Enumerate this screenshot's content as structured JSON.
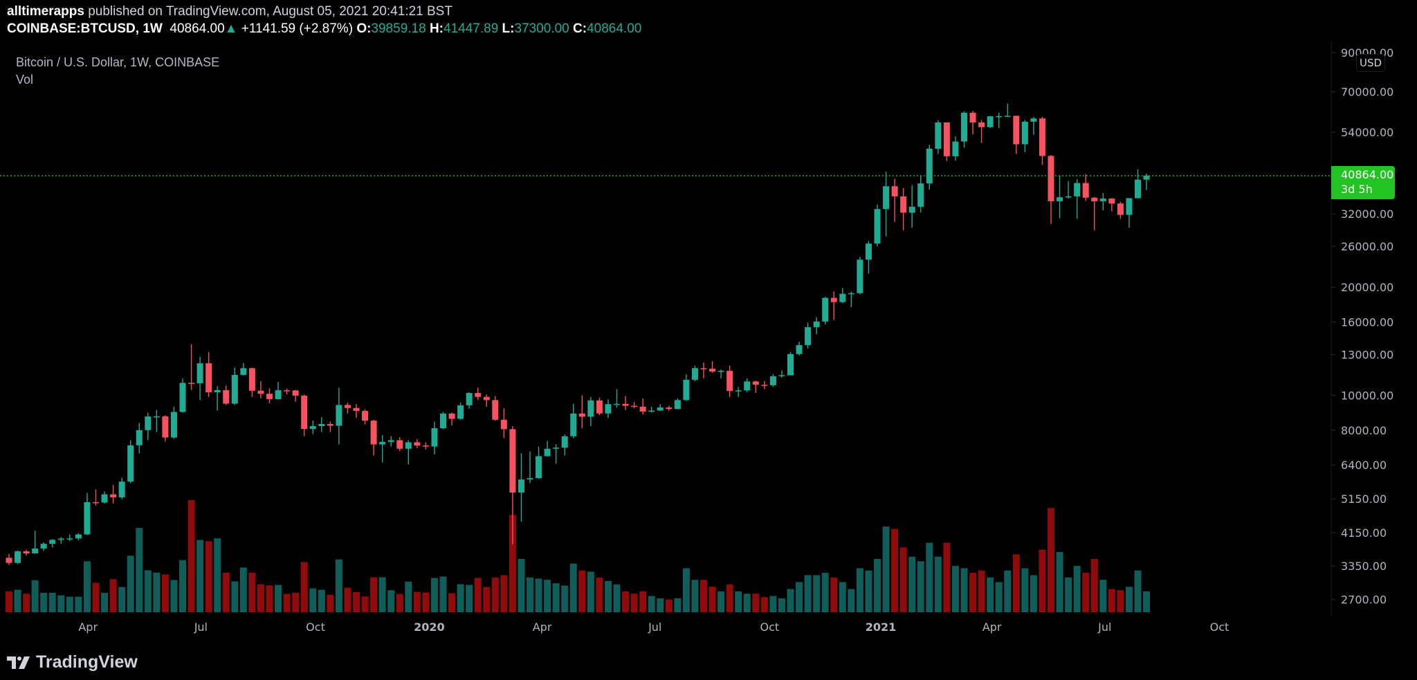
{
  "header": {
    "author": "alltimerapps",
    "published": "published on TradingView.com, August 05, 2021 20:41:21 BST",
    "symbol": "COINBASE:BTCUSD, 1W",
    "last": "40864.00",
    "change": "+1141.59 (+2.87%)",
    "o_label": "O:",
    "o": "39859.18",
    "h_label": "H:",
    "h": "41447.89",
    "l_label": "L:",
    "l": "37300.00",
    "c_label": "C:",
    "c": "40864.00"
  },
  "legend": {
    "title": "Bitcoin / U.S. Dollar, 1W, COINBASE",
    "vol": "Vol"
  },
  "price_axis": {
    "currency": "USD",
    "last_price": "40864.00",
    "countdown": "3d 5h"
  },
  "brand": "TradingView",
  "colors": {
    "up": "#22ab94",
    "down": "#f7525f",
    "vol_up": "#0f5e5a",
    "vol_down": "#900c0c",
    "last_price": "#22c322"
  },
  "chart_data": {
    "type": "candlestick",
    "title": "Bitcoin / U.S. Dollar, 1W, COINBASE",
    "scale": "log",
    "ylim": [
      2700,
      90000
    ],
    "y_ticks": [
      90000,
      70000,
      54000,
      32000,
      26000,
      20000,
      16000,
      13000,
      10000,
      8000,
      6400,
      5150,
      4150,
      3350,
      2700
    ],
    "y_tick_labels": [
      "90000.00",
      "70000.00",
      "54000.00",
      "32000.00",
      "26000.00",
      "20000.00",
      "16000.00",
      "13000.00",
      "10000.00",
      "8000.00",
      "6400.00",
      "5150.00",
      "4150.00",
      "3350.00",
      "2700.00"
    ],
    "x_ticks": [
      "Apr",
      "Jul",
      "Oct",
      "2020",
      "Apr",
      "Jul",
      "Oct",
      "2021",
      "Apr",
      "Jul",
      "Oct"
    ],
    "last_price": 40864.0,
    "candle_fields": [
      "open",
      "high",
      "low",
      "close",
      "volume"
    ],
    "candles": [
      [
        3530,
        3620,
        3370,
        3415,
        90
      ],
      [
        3415,
        3700,
        3390,
        3680,
        97
      ],
      [
        3680,
        3720,
        3580,
        3630,
        80
      ],
      [
        3630,
        4200,
        3620,
        3745,
        138
      ],
      [
        3745,
        3900,
        3690,
        3860,
        84
      ],
      [
        3860,
        3980,
        3770,
        3960,
        84
      ],
      [
        3960,
        4030,
        3860,
        3990,
        73
      ],
      [
        3990,
        4100,
        3930,
        3995,
        67
      ],
      [
        3995,
        4130,
        3950,
        4100,
        67
      ],
      [
        4100,
        5350,
        4080,
        5040,
        220
      ],
      [
        5040,
        5470,
        4930,
        5030,
        127
      ],
      [
        5030,
        5400,
        5000,
        5300,
        84
      ],
      [
        5300,
        5630,
        5000,
        5200,
        143
      ],
      [
        5200,
        5900,
        5130,
        5750,
        109
      ],
      [
        5750,
        7500,
        5700,
        7260,
        244
      ],
      [
        7260,
        8380,
        6900,
        8000,
        364
      ],
      [
        8000,
        8950,
        7500,
        8730,
        181
      ],
      [
        8730,
        9100,
        7900,
        8740,
        171
      ],
      [
        8740,
        8800,
        7450,
        7630,
        163
      ],
      [
        7630,
        9300,
        7560,
        8990,
        139
      ],
      [
        8990,
        11150,
        8950,
        10830,
        225
      ],
      [
        10830,
        13880,
        10350,
        10800,
        484
      ],
      [
        10800,
        12800,
        9700,
        12280,
        312
      ],
      [
        12280,
        13200,
        9900,
        10200,
        307
      ],
      [
        10200,
        10600,
        9070,
        10340,
        319
      ],
      [
        10340,
        10650,
        9400,
        9480,
        171
      ],
      [
        9480,
        11950,
        9400,
        11400,
        133
      ],
      [
        11400,
        12300,
        11350,
        11900,
        193
      ],
      [
        11900,
        11950,
        9900,
        10300,
        171
      ],
      [
        10300,
        10950,
        9800,
        10100,
        121
      ],
      [
        10100,
        10450,
        9500,
        9760,
        116
      ],
      [
        9760,
        10900,
        9760,
        10330,
        118
      ],
      [
        10330,
        10450,
        10050,
        10320,
        79
      ],
      [
        10320,
        10350,
        9600,
        9980,
        84
      ],
      [
        9980,
        10050,
        7700,
        8060,
        217
      ],
      [
        8060,
        8500,
        7800,
        8210,
        103
      ],
      [
        8210,
        8700,
        7900,
        8320,
        97
      ],
      [
        8320,
        8450,
        7900,
        8230,
        75
      ],
      [
        8230,
        10500,
        7300,
        9400,
        228
      ],
      [
        9400,
        9550,
        8900,
        9220,
        106
      ],
      [
        9220,
        9450,
        8650,
        9050,
        87
      ],
      [
        9050,
        9150,
        8300,
        8500,
        68
      ],
      [
        8500,
        8550,
        6800,
        7300,
        151
      ],
      [
        7300,
        7750,
        6500,
        7420,
        151
      ],
      [
        7420,
        7700,
        7200,
        7500,
        95
      ],
      [
        7500,
        7650,
        7000,
        7100,
        79
      ],
      [
        7100,
        7500,
        6430,
        7400,
        132
      ],
      [
        7400,
        7550,
        7130,
        7250,
        88
      ],
      [
        7250,
        7400,
        7070,
        7200,
        85
      ],
      [
        7200,
        8450,
        6850,
        8100,
        148
      ],
      [
        8100,
        9000,
        8050,
        8900,
        154
      ],
      [
        8900,
        8950,
        8250,
        8600,
        82
      ],
      [
        8600,
        9550,
        8550,
        9380,
        121
      ],
      [
        9380,
        10200,
        9180,
        10150,
        118
      ],
      [
        10150,
        10500,
        9700,
        9900,
        148
      ],
      [
        9900,
        10050,
        9300,
        9700,
        109
      ],
      [
        9700,
        9950,
        8500,
        8550,
        150
      ],
      [
        8550,
        9200,
        7600,
        8050,
        160
      ],
      [
        8050,
        8200,
        3850,
        5360,
        420
      ],
      [
        5360,
        6900,
        4450,
        5830,
        230
      ],
      [
        5830,
        6980,
        5700,
        5880,
        150
      ],
      [
        5880,
        7200,
        5860,
        6770,
        145
      ],
      [
        6770,
        7470,
        6750,
        7100,
        140
      ],
      [
        7100,
        7300,
        6450,
        7150,
        125
      ],
      [
        7150,
        7780,
        6800,
        7690,
        115
      ],
      [
        7690,
        9480,
        7600,
        8900,
        210
      ],
      [
        8900,
        10000,
        8100,
        8720,
        180
      ],
      [
        8720,
        9900,
        8200,
        9680,
        175
      ],
      [
        9680,
        9850,
        8800,
        8900,
        150
      ],
      [
        8900,
        9740,
        8650,
        9450,
        135
      ],
      [
        9450,
        10400,
        9250,
        9470,
        120
      ],
      [
        9470,
        9950,
        9100,
        9350,
        90
      ],
      [
        9350,
        9580,
        9200,
        9300,
        80
      ],
      [
        9300,
        9800,
        8850,
        9010,
        90
      ],
      [
        9010,
        9300,
        8950,
        9070,
        70
      ],
      [
        9070,
        9450,
        9050,
        9250,
        60
      ],
      [
        9250,
        9350,
        9060,
        9160,
        55
      ],
      [
        9160,
        9800,
        9150,
        9700,
        60
      ],
      [
        9700,
        11450,
        9650,
        11050,
        190
      ],
      [
        11050,
        12100,
        10950,
        11900,
        140
      ],
      [
        11900,
        12350,
        11150,
        11860,
        140
      ],
      [
        11860,
        12450,
        11550,
        11650,
        110
      ],
      [
        11650,
        11800,
        11150,
        11700,
        90
      ],
      [
        11700,
        12100,
        9900,
        10280,
        120
      ],
      [
        10280,
        10550,
        9900,
        10320,
        90
      ],
      [
        10320,
        11150,
        10200,
        10930,
        80
      ],
      [
        10930,
        10990,
        10150,
        10700,
        80
      ],
      [
        10700,
        10950,
        10400,
        10670,
        65
      ],
      [
        10670,
        11450,
        10550,
        11300,
        70
      ],
      [
        11300,
        11750,
        11200,
        11370,
        60
      ],
      [
        11370,
        13200,
        11360,
        13030,
        100
      ],
      [
        13030,
        14100,
        12900,
        13800,
        130
      ],
      [
        13800,
        15950,
        13500,
        15480,
        160
      ],
      [
        15480,
        16500,
        14800,
        16050,
        160
      ],
      [
        16050,
        18800,
        15750,
        18680,
        170
      ],
      [
        18680,
        19450,
        16200,
        18180,
        150
      ],
      [
        18180,
        19900,
        18050,
        19170,
        130
      ],
      [
        19170,
        19450,
        17600,
        19250,
        100
      ],
      [
        19250,
        24300,
        19100,
        23860,
        190
      ],
      [
        23860,
        26900,
        21800,
        26450,
        180
      ],
      [
        26450,
        34000,
        26000,
        33000,
        230
      ],
      [
        33000,
        42000,
        27700,
        38200,
        370
      ],
      [
        38200,
        40100,
        30400,
        35800,
        360
      ],
      [
        35800,
        37800,
        28800,
        32250,
        280
      ],
      [
        32250,
        38500,
        29300,
        33500,
        240
      ],
      [
        33500,
        41000,
        32300,
        38900,
        220
      ],
      [
        38900,
        49800,
        37400,
        48600,
        300
      ],
      [
        48600,
        58350,
        47000,
        57500,
        240
      ],
      [
        57500,
        57550,
        44900,
        46300,
        300
      ],
      [
        46300,
        52600,
        45000,
        50900,
        200
      ],
      [
        50900,
        61800,
        48900,
        61200,
        190
      ],
      [
        61200,
        61900,
        53300,
        57500,
        170
      ],
      [
        57500,
        58400,
        50400,
        55800,
        180
      ],
      [
        55800,
        60000,
        55500,
        59800,
        150
      ],
      [
        59800,
        61200,
        55500,
        59900,
        130
      ],
      [
        59900,
        64900,
        59800,
        60000,
        180
      ],
      [
        60000,
        60100,
        47000,
        50000,
        250
      ],
      [
        50000,
        58400,
        47500,
        57800,
        190
      ],
      [
        57800,
        59600,
        53100,
        59000,
        160
      ],
      [
        59000,
        59600,
        43800,
        46400,
        270
      ],
      [
        46400,
        46650,
        30000,
        34700,
        450
      ],
      [
        34700,
        40900,
        31100,
        35600,
        260
      ],
      [
        35600,
        39500,
        35300,
        35800,
        150
      ],
      [
        35800,
        40000,
        31000,
        39000,
        200
      ],
      [
        39000,
        41300,
        34800,
        35500,
        170
      ],
      [
        35500,
        35700,
        28800,
        34700,
        230
      ],
      [
        34700,
        36600,
        32700,
        35300,
        140
      ],
      [
        35300,
        35400,
        32500,
        34200,
        100
      ],
      [
        34200,
        34600,
        31000,
        31800,
        95
      ],
      [
        31800,
        35400,
        29300,
        35400,
        110
      ],
      [
        35400,
        42600,
        35300,
        39860,
        180
      ],
      [
        39859.18,
        41447.89,
        37300,
        40864,
        90
      ]
    ]
  }
}
